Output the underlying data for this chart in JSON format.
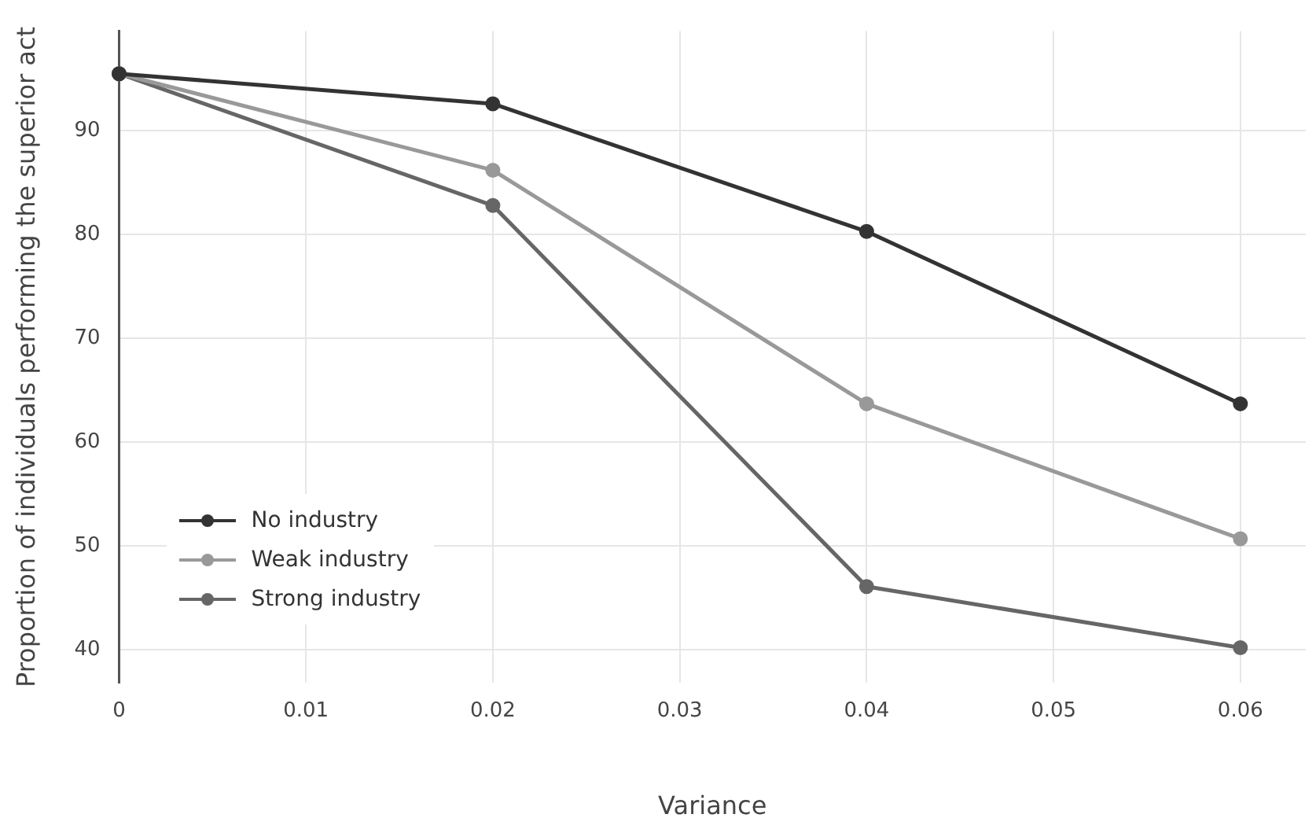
{
  "chart_data": {
    "type": "line",
    "xlabel": "Variance",
    "ylabel": "Proportion of individuals performing the superior act",
    "x": [
      0,
      0.02,
      0.04,
      0.06
    ],
    "series": [
      {
        "name": "No industry",
        "color": "#333333",
        "values": [
          95.5,
          92.6,
          80.3,
          63.7
        ]
      },
      {
        "name": "Weak industry",
        "color": "#999999",
        "values": [
          95.5,
          86.2,
          63.7,
          50.7
        ]
      },
      {
        "name": "Strong industry",
        "color": "#666666",
        "values": [
          95.5,
          82.8,
          46.1,
          40.2
        ]
      }
    ],
    "xlim": [
      0,
      0.0635
    ],
    "ylim": [
      36.8,
      99.6
    ],
    "xticks": [
      0,
      0.01,
      0.02,
      0.03,
      0.04,
      0.05,
      0.06
    ],
    "yticks": [
      40,
      50,
      60,
      70,
      80,
      90
    ],
    "grid": true,
    "legend": "bottom left",
    "marker": "circle",
    "line_style": "solid"
  }
}
